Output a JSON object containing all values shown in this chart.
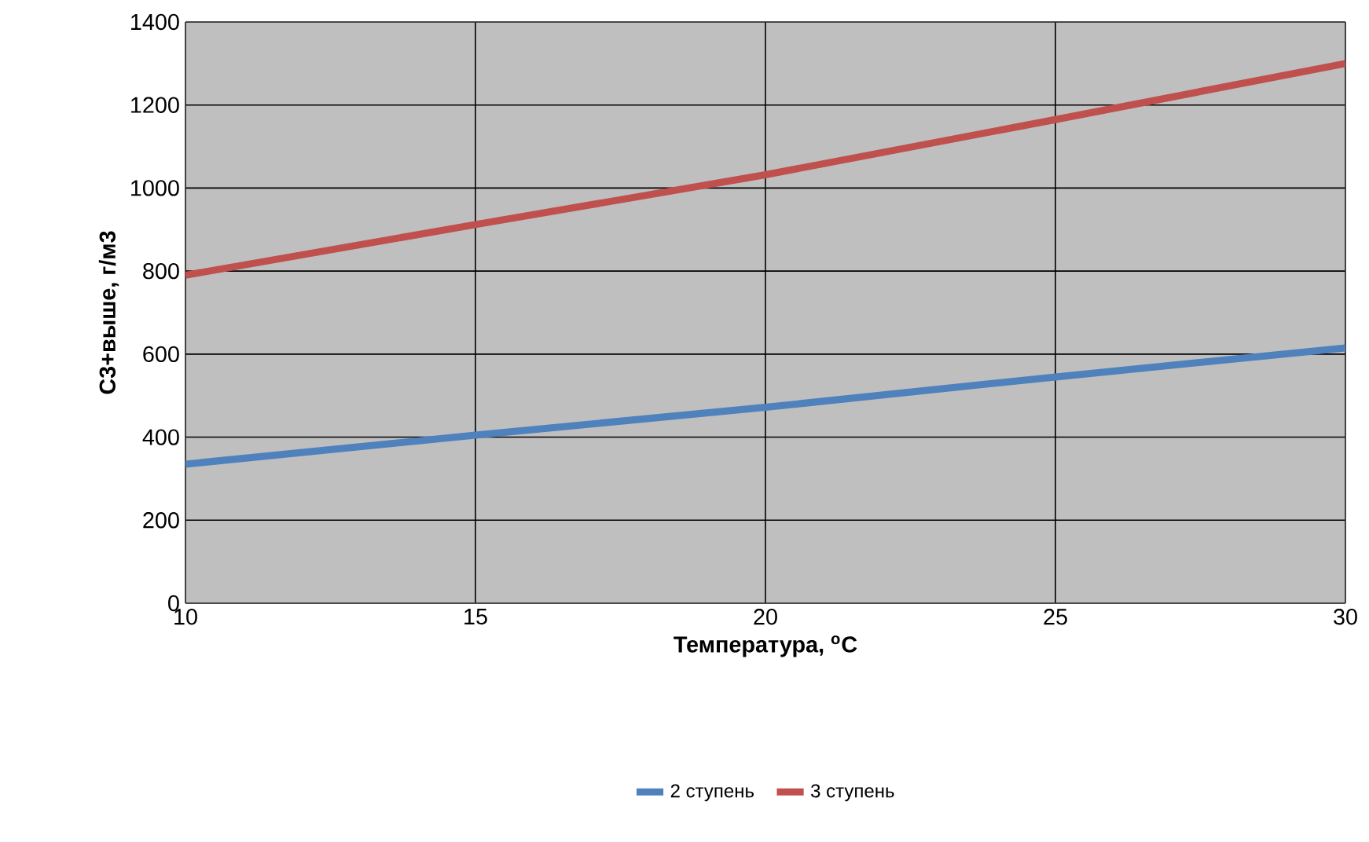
{
  "chart_data": {
    "type": "line",
    "xlabel": "Температура, $^{o}$С",
    "ylabel": "С3+выше, г/м3",
    "x": [
      10,
      15,
      20,
      25,
      30
    ],
    "series": [
      {
        "name": "2 ступень",
        "color": "#4f81bd",
        "values": [
          335,
          405,
          472,
          545,
          615
        ]
      },
      {
        "name": "3 ступень",
        "color": "#c0504d",
        "values": [
          790,
          912,
          1032,
          1165,
          1300
        ]
      }
    ],
    "xlim": [
      10,
      30
    ],
    "xticks": [
      10,
      15,
      20,
      25,
      30
    ],
    "ylim": [
      0,
      1400
    ],
    "yticks": [
      0,
      200,
      400,
      600,
      800,
      1000,
      1200,
      1400
    ],
    "grid": true,
    "legend": "bottom",
    "marker": "none",
    "line_style": "solid"
  }
}
